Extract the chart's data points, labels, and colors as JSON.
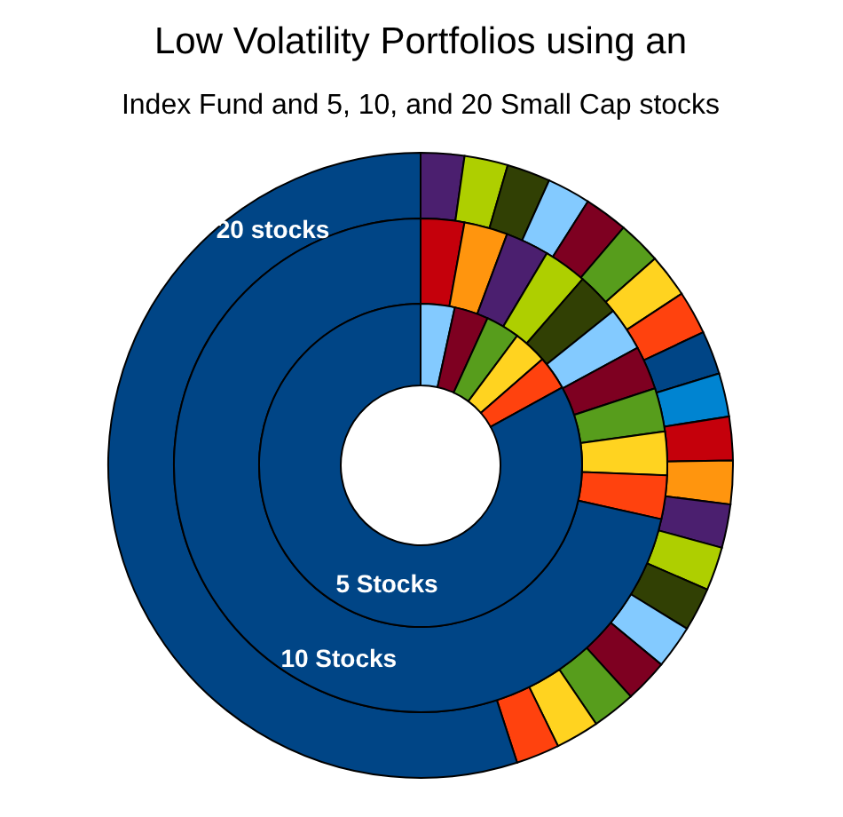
{
  "chart_data": [
    {
      "type": "donut",
      "title": "Low Volatility Portfolios using an",
      "subtitle": "Index Fund and 5, 10, and 20 Small Cap stocks",
      "categories": [
        null,
        null,
        null,
        null,
        null,
        null,
        null,
        null,
        null,
        null,
        null,
        null,
        null,
        null,
        null,
        null,
        null,
        null,
        null,
        null,
        "20 stocks"
      ],
      "values": [
        2.25,
        2.25,
        2.25,
        2.25,
        2.25,
        2.25,
        2.25,
        2.25,
        2.25,
        2.25,
        2.25,
        2.25,
        2.25,
        2.25,
        2.25,
        2.25,
        2.25,
        2.25,
        2.25,
        2.25,
        55
      ],
      "colors": [
        "#4b1f6f",
        "#aecf00",
        "#314004",
        "#83caff",
        "#7e0021",
        "#579d1c",
        "#ffd320",
        "#ff420e",
        "#004586",
        "#0084d1",
        "#c5000b",
        "#ff950e",
        "#4b1f6f",
        "#aecf00",
        "#314004",
        "#83caff",
        "#7e0021",
        "#579d1c",
        "#ffd320",
        "#ff420e",
        "#004586"
      ]
    },
    {
      "type": "donut",
      "categories": [
        null,
        null,
        null,
        null,
        null,
        null,
        null,
        null,
        null,
        null,
        "10 Stocks"
      ],
      "values": [
        2.85,
        2.85,
        2.85,
        2.85,
        2.85,
        2.85,
        2.85,
        2.85,
        2.85,
        2.85,
        71.5
      ],
      "colors": [
        "#c5000b",
        "#ff950e",
        "#4b1f6f",
        "#aecf00",
        "#314004",
        "#83caff",
        "#7e0021",
        "#579d1c",
        "#ffd320",
        "#ff420e",
        "#004586"
      ]
    },
    {
      "type": "donut",
      "categories": [
        null,
        null,
        null,
        null,
        null,
        "5 Stocks"
      ],
      "values": [
        3.4,
        3.4,
        3.4,
        3.4,
        3.4,
        83
      ],
      "colors": [
        "#83caff",
        "#7e0021",
        "#579d1c",
        "#ffd320",
        "#ff420e",
        "#004586"
      ]
    }
  ]
}
